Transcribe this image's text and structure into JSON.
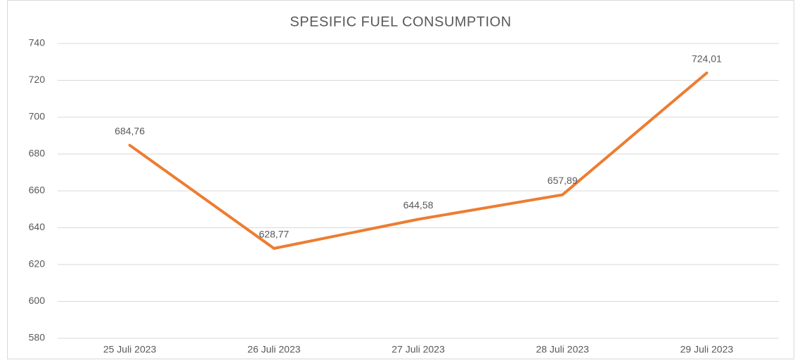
{
  "chart_data": {
    "type": "line",
    "title": "SPESIFIC FUEL CONSUMPTION",
    "categories": [
      "25 Juli 2023",
      "26 Juli 2023",
      "27 Juli 2023",
      "28 Juli 2023",
      "29 Juli 2023"
    ],
    "values": [
      684.76,
      628.77,
      644.58,
      657.89,
      724.01
    ],
    "value_labels": [
      "684,76",
      "628,77",
      "644,58",
      "657,89",
      "724,01"
    ],
    "color": "#ed7d31",
    "ylim": [
      580,
      740
    ],
    "yticks": [
      580,
      600,
      620,
      640,
      660,
      680,
      700,
      720,
      740
    ],
    "grid": true
  }
}
